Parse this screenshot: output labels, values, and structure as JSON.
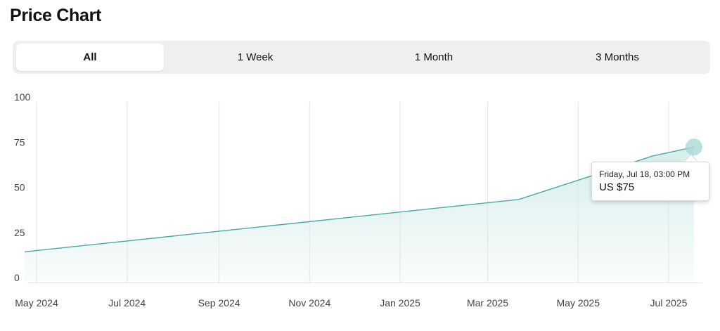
{
  "header": {
    "title": "Price Chart"
  },
  "tabs": [
    {
      "label": "All",
      "active": true
    },
    {
      "label": "1 Week",
      "active": false
    },
    {
      "label": "1 Month",
      "active": false
    },
    {
      "label": "3 Months",
      "active": false
    }
  ],
  "tooltip": {
    "date": "Friday, Jul 18, 03:00 PM",
    "price": "US $75"
  },
  "colors": {
    "line": "#4aa9a2",
    "fill": "#d4ece9",
    "grid": "#e3e3e3",
    "tick_text": "#444444",
    "marker": "#a9dad6"
  },
  "chart_data": {
    "type": "area",
    "title": "Price Chart",
    "xlabel": "",
    "ylabel": "",
    "ylim": [
      0,
      100
    ],
    "yticks": [
      0,
      25,
      50,
      75,
      100
    ],
    "xticks": [
      "May 2024",
      "Jul 2024",
      "Sep 2024",
      "Nov 2024",
      "Jan 2025",
      "Mar 2025",
      "May 2025",
      "Jul 2025"
    ],
    "grid": "vertical",
    "x": [
      "2024-04-23",
      "2025-03-22",
      "2025-06-20",
      "2025-07-18"
    ],
    "values": [
      17,
      46,
      70,
      75
    ],
    "highlight": {
      "x": "2025-07-18",
      "y": 75
    }
  }
}
